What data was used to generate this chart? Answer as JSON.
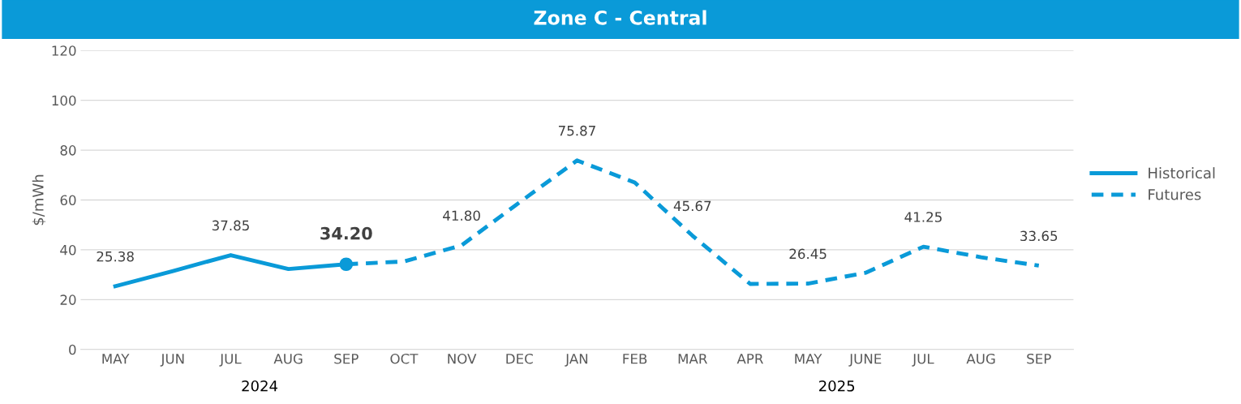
{
  "chart_data": {
    "type": "line",
    "title": "Zone C - Central",
    "ylabel": "$/mWh",
    "categories": [
      "MAY",
      "JUN",
      "JUL",
      "AUG",
      "SEP",
      "OCT",
      "NOV",
      "DEC",
      "JAN",
      "FEB",
      "MAR",
      "APR",
      "MAY",
      "JUNE",
      "JUL",
      "AUG",
      "SEP"
    ],
    "series": [
      {
        "name": "Historical",
        "color": "#0a9ad8",
        "line_style": "solid",
        "values": [
          25.38,
          31.5,
          37.85,
          32.3,
          34.2,
          null,
          null,
          null,
          null,
          null,
          null,
          null,
          null,
          null,
          null,
          null,
          null
        ],
        "value_labels": [
          "25.38",
          null,
          "37.85",
          null,
          "34.20",
          null,
          null,
          null,
          null,
          null,
          null,
          null,
          null,
          null,
          null,
          null,
          null
        ]
      },
      {
        "name": "Futures",
        "color": "#0a9ad8",
        "line_style": "dashed",
        "values": [
          null,
          null,
          null,
          null,
          34.2,
          35.3,
          41.8,
          59,
          75.87,
          67,
          45.67,
          26.3,
          26.45,
          30.8,
          41.25,
          37,
          33.65
        ],
        "value_labels": [
          null,
          null,
          null,
          null,
          null,
          null,
          "41.80",
          null,
          "75.87",
          null,
          "45.67",
          null,
          "26.45",
          null,
          "41.25",
          null,
          "33.65"
        ]
      },
      {
        "type": "scatter",
        "marker": "circle",
        "color": "#0a9ad8",
        "values": [
          null,
          null,
          null,
          null,
          34.2,
          null,
          null,
          null,
          null,
          null,
          null,
          null,
          null,
          null,
          null,
          null,
          null
        ]
      }
    ],
    "ylim": [
      0,
      120
    ],
    "yticks": [
      0,
      20,
      40,
      60,
      80,
      100,
      120
    ],
    "grid": "y",
    "legend": "right",
    "annotations": [
      "2024",
      "2025"
    ]
  }
}
